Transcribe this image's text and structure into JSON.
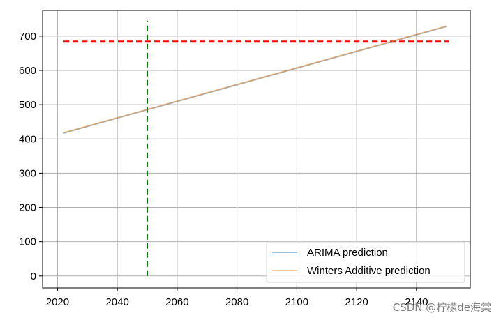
{
  "chart_data": {
    "type": "line",
    "title": "",
    "xlabel": "",
    "ylabel": "",
    "xlim": [
      2015,
      2158
    ],
    "ylim": [
      -35,
      775
    ],
    "xticks": [
      2020,
      2040,
      2060,
      2080,
      2100,
      2120,
      2140
    ],
    "yticks": [
      0,
      100,
      200,
      300,
      400,
      500,
      600,
      700
    ],
    "grid": true,
    "legend_position": "lower-right",
    "series": [
      {
        "name": "ARIMA prediction",
        "color": "#1f77b4",
        "x": [
          2022,
          2150
        ],
        "y": [
          417,
          728
        ]
      },
      {
        "name": "Winters Additive prediction",
        "color": "#ff7f0e",
        "x": [
          2022,
          2150
        ],
        "y": [
          418,
          729
        ]
      }
    ],
    "reference_lines": [
      {
        "orientation": "horizontal",
        "y": 685,
        "x_range": [
          2022,
          2151
        ],
        "color": "#ff0000",
        "style": "dashed"
      },
      {
        "orientation": "vertical",
        "x": 2050,
        "y_range": [
          0,
          745
        ],
        "color": "#008000",
        "style": "dashed"
      }
    ]
  },
  "watermark": {
    "text": "CSDN @柠檬de海棠"
  }
}
